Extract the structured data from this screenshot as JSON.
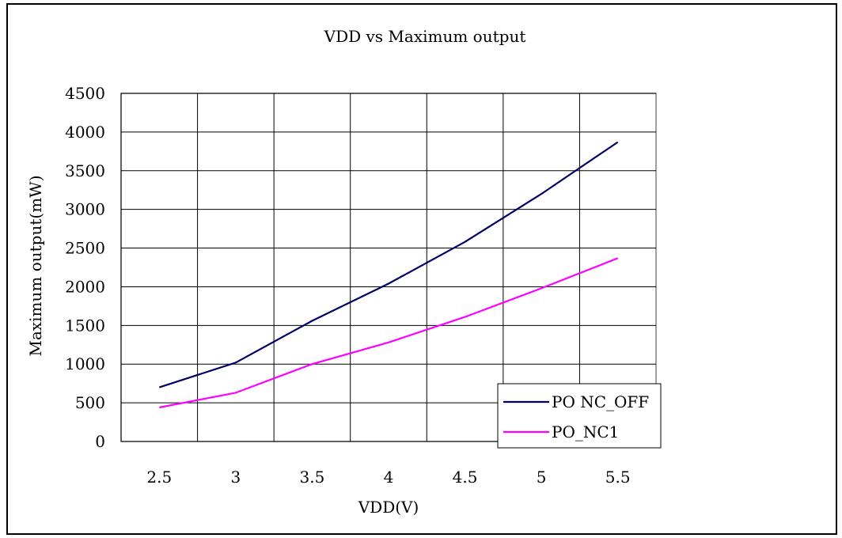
{
  "chart_data": {
    "type": "line",
    "title": "VDD vs Maximum output",
    "xlabel": "VDD(V)",
    "ylabel": "Maximum output(mW)",
    "categories": [
      "2.5",
      "3",
      "3.5",
      "4",
      "4.5",
      "5",
      "5.5"
    ],
    "ylim": [
      0,
      4500
    ],
    "yticks": [
      "0",
      "500",
      "1000",
      "1500",
      "2000",
      "2500",
      "3000",
      "3500",
      "4000",
      "4500"
    ],
    "grid": true,
    "legend_position": "bottom-right",
    "series": [
      {
        "name": "PO NC_OFF",
        "color": "#000066",
        "values": [
          700,
          1020,
          1560,
          2040,
          2580,
          3200,
          3870
        ]
      },
      {
        "name": "PO_NC1",
        "color": "#ff00ff",
        "values": [
          440,
          630,
          1000,
          1280,
          1610,
          1980,
          2370
        ]
      }
    ]
  }
}
